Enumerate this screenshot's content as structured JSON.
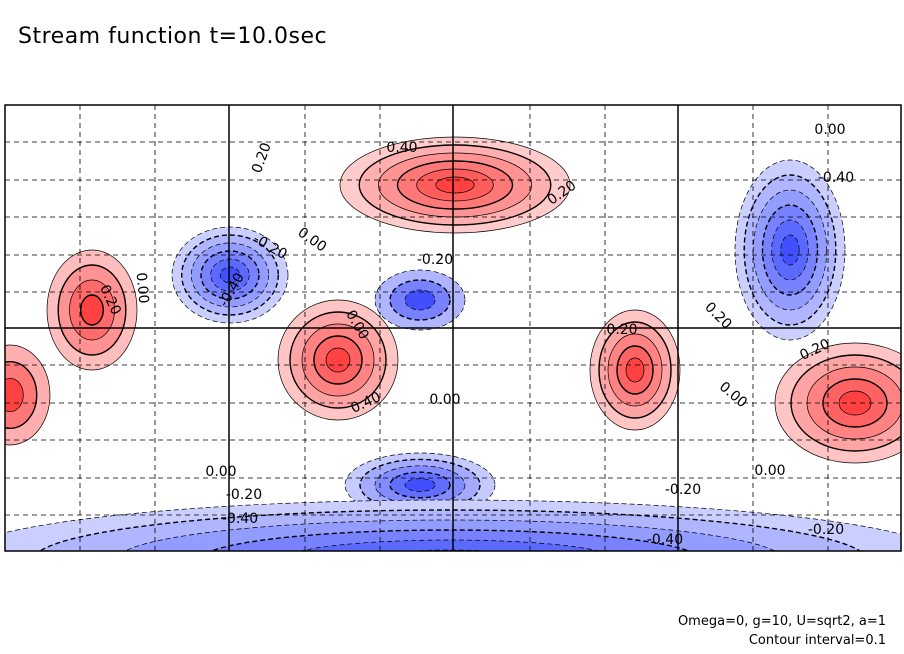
{
  "title": "Stream function t=10.0sec",
  "notes": {
    "params": "Omega=0, g=10, U=sqrt2, a=1",
    "contour": "Contour interval=0.1"
  },
  "chart_data": {
    "type": "heatmap",
    "title": "Stream function t=10.0sec",
    "xlabel": "",
    "ylabel": "",
    "contour_interval": 0.1,
    "colors": {
      "positive": "#ff3030",
      "negative": "#3040ff",
      "zero": "#ffffff"
    },
    "grid": "dashed",
    "contour_labels": [
      {
        "text": "0.20"
      },
      {
        "text": "0.40"
      },
      {
        "text": "0.20"
      },
      {
        "text": "0.00"
      },
      {
        "text": "-0.40"
      },
      {
        "text": "-0.20"
      },
      {
        "text": "0.00"
      },
      {
        "text": "-0.20"
      },
      {
        "text": "0.00"
      },
      {
        "text": "0.20"
      },
      {
        "text": "0.00"
      },
      {
        "text": "-0.40"
      },
      {
        "text": "0.00"
      },
      {
        "text": "0.20"
      },
      {
        "text": "0.40"
      },
      {
        "text": "0.20"
      },
      {
        "text": "0.00"
      },
      {
        "text": "-0.20"
      },
      {
        "text": "0.20"
      },
      {
        "text": "0.00"
      },
      {
        "text": "-0.20"
      },
      {
        "text": "-0.40"
      },
      {
        "text": "-0.20"
      },
      {
        "text": "-0.40"
      },
      {
        "text": "0.00"
      }
    ],
    "features": [
      {
        "sign": "positive",
        "peak": 0.6
      },
      {
        "sign": "positive",
        "peak": 0.4
      },
      {
        "sign": "positive",
        "peak": 0.5
      },
      {
        "sign": "positive",
        "peak": 0.5
      },
      {
        "sign": "positive",
        "peak": 0.5
      },
      {
        "sign": "positive",
        "peak": 0.3
      },
      {
        "sign": "negative",
        "peak": -0.6
      },
      {
        "sign": "negative",
        "peak": -0.6
      },
      {
        "sign": "negative",
        "peak": -0.5
      },
      {
        "sign": "negative",
        "peak": -0.3
      },
      {
        "sign": "negative",
        "peak": -0.6
      }
    ]
  }
}
